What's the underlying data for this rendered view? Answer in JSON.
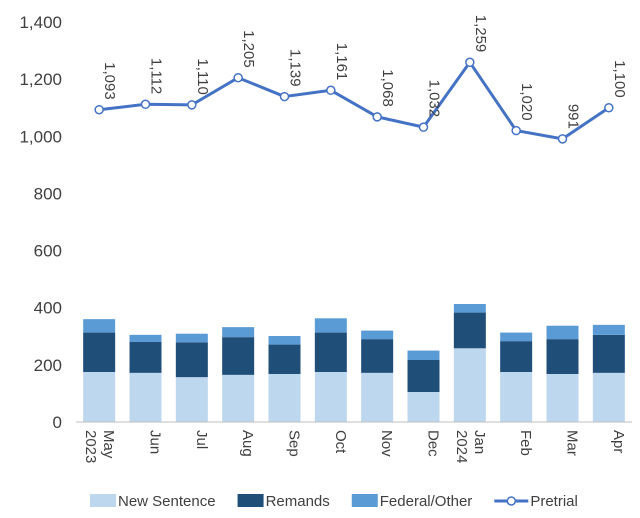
{
  "chart_data": {
    "type": "bar",
    "categories": [
      "May 2023",
      "Jun",
      "Jul",
      "Aug",
      "Sep",
      "Oct",
      "Nov",
      "Dec",
      "Jan 2024",
      "Feb",
      "Mar",
      "Apr"
    ],
    "category_lines": [
      [
        "May",
        "2023"
      ],
      [
        "Jun"
      ],
      [
        "Jul"
      ],
      [
        "Aug"
      ],
      [
        "Sep"
      ],
      [
        "Oct"
      ],
      [
        "Nov"
      ],
      [
        "Dec"
      ],
      [
        "Jan",
        "2024"
      ],
      [
        "Feb"
      ],
      [
        "Mar"
      ],
      [
        "Apr"
      ]
    ],
    "ylim": [
      0,
      1400
    ],
    "yticks": [
      "0",
      "200",
      "400",
      "600",
      "800",
      "1,000",
      "1,200",
      "1,400"
    ],
    "stacked_series": [
      {
        "name": "New Sentence",
        "color": "#bdd7ee",
        "values": [
          175,
          172,
          157,
          165,
          168,
          175,
          172,
          105,
          258,
          175,
          168,
          172
        ]
      },
      {
        "name": "Remands",
        "color": "#1f4e79",
        "values": [
          138,
          108,
          122,
          132,
          103,
          138,
          118,
          112,
          125,
          108,
          122,
          133
        ]
      },
      {
        "name": "Federal/Other",
        "color": "#5b9bd5",
        "values": [
          47,
          25,
          30,
          35,
          30,
          50,
          30,
          33,
          30,
          30,
          47,
          35
        ]
      }
    ],
    "line_series": {
      "name": "Pretrial",
      "color": "#4472c4",
      "values": [
        1093,
        1112,
        1110,
        1205,
        1139,
        1161,
        1068,
        1032,
        1259,
        1020,
        991,
        1100
      ],
      "labels": [
        "1,093",
        "1,112",
        "1,110",
        "1,205",
        "1,139",
        "1,161",
        "1,068",
        "1,032",
        "1,259",
        "1,020",
        "991",
        "1,100"
      ]
    },
    "legend_position": "bottom",
    "grid": false
  }
}
